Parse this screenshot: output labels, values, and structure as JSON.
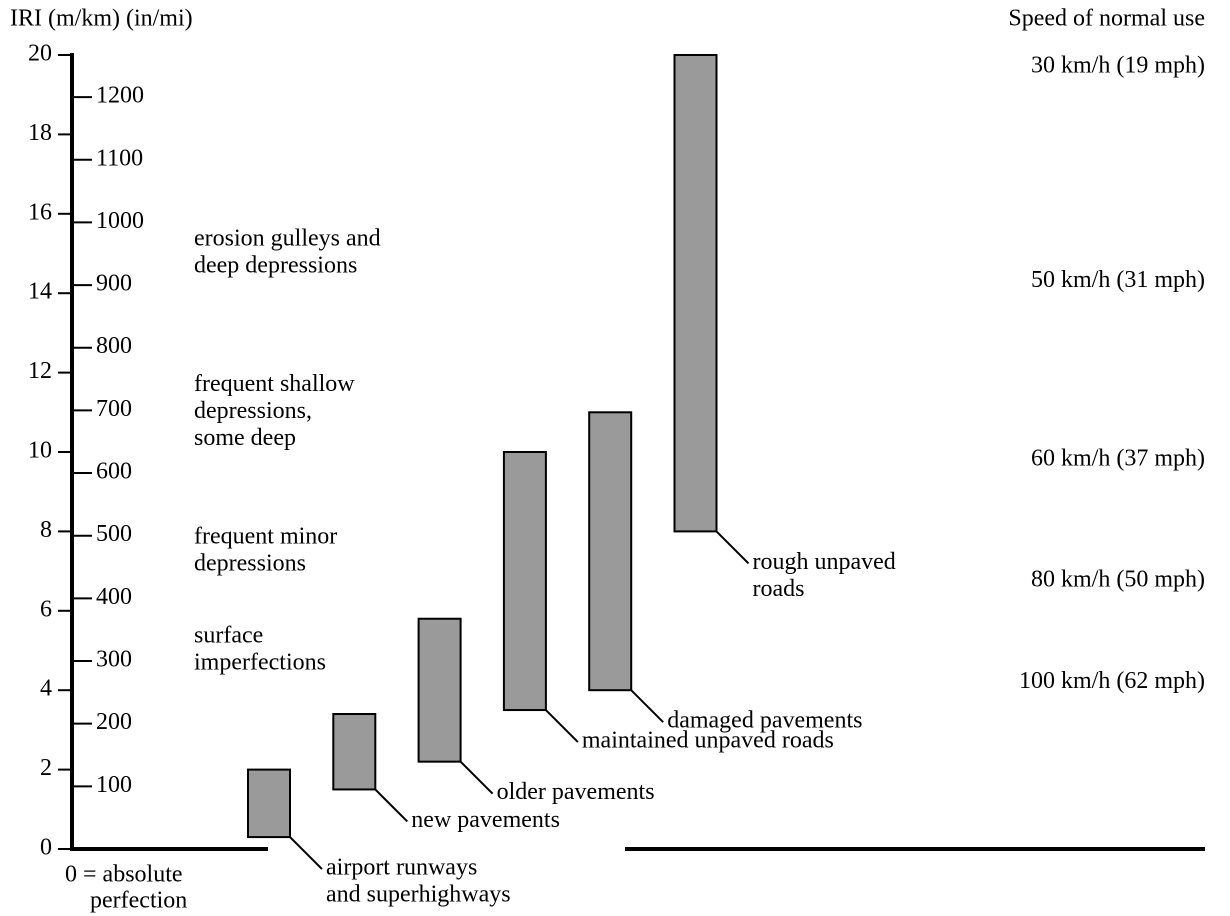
{
  "chart_data": {
    "type": "floating-bar",
    "y_label": "IRI (m/km) (in/mi)",
    "y2_label": "Speed of normal use",
    "zero_note": [
      "0 = absolute",
      "perfection"
    ],
    "categories": [
      [
        "airport runways",
        "and superhighways"
      ],
      [
        "new pavements"
      ],
      [
        "older pavements"
      ],
      [
        "maintained unpaved roads"
      ],
      [
        "damaged pavements"
      ],
      [
        "rough unpaved",
        "roads"
      ]
    ],
    "low": [
      0.3,
      1.5,
      2.2,
      3.5,
      4,
      8
    ],
    "high": [
      2,
      3.4,
      5.8,
      10,
      11,
      20
    ],
    "color": "#9a9a9a",
    "ylim": [
      0,
      20
    ],
    "yticks": [
      0,
      2,
      4,
      6,
      8,
      10,
      12,
      14,
      16,
      18,
      20
    ],
    "y2lim": [
      0,
      1267.2
    ],
    "y2ticks": [
      100,
      200,
      300,
      400,
      500,
      600,
      700,
      800,
      900,
      1000,
      1100,
      1200
    ],
    "descriptions": [
      {
        "lines": [
          "erosion gulleys and",
          "deep depressions"
        ],
        "value": 15
      },
      {
        "lines": [
          "frequent shallow",
          "depressions,",
          "some deep"
        ],
        "value": 11
      },
      {
        "lines": [
          "frequent minor",
          "depressions"
        ],
        "value": 7.5
      },
      {
        "lines": [
          "surface",
          "imperfections"
        ],
        "value": 5
      }
    ],
    "speeds": [
      {
        "label": "30 km/h (19 mph)",
        "value": 19.7
      },
      {
        "label": "50 km/h (31 mph)",
        "value": 14.3
      },
      {
        "label": "60 km/h (37 mph)",
        "value": 9.8
      },
      {
        "label": "80 km/h (50 mph)",
        "value": 6.75
      },
      {
        "label": "100 km/h (62 mph)",
        "value": 4.2
      }
    ]
  }
}
